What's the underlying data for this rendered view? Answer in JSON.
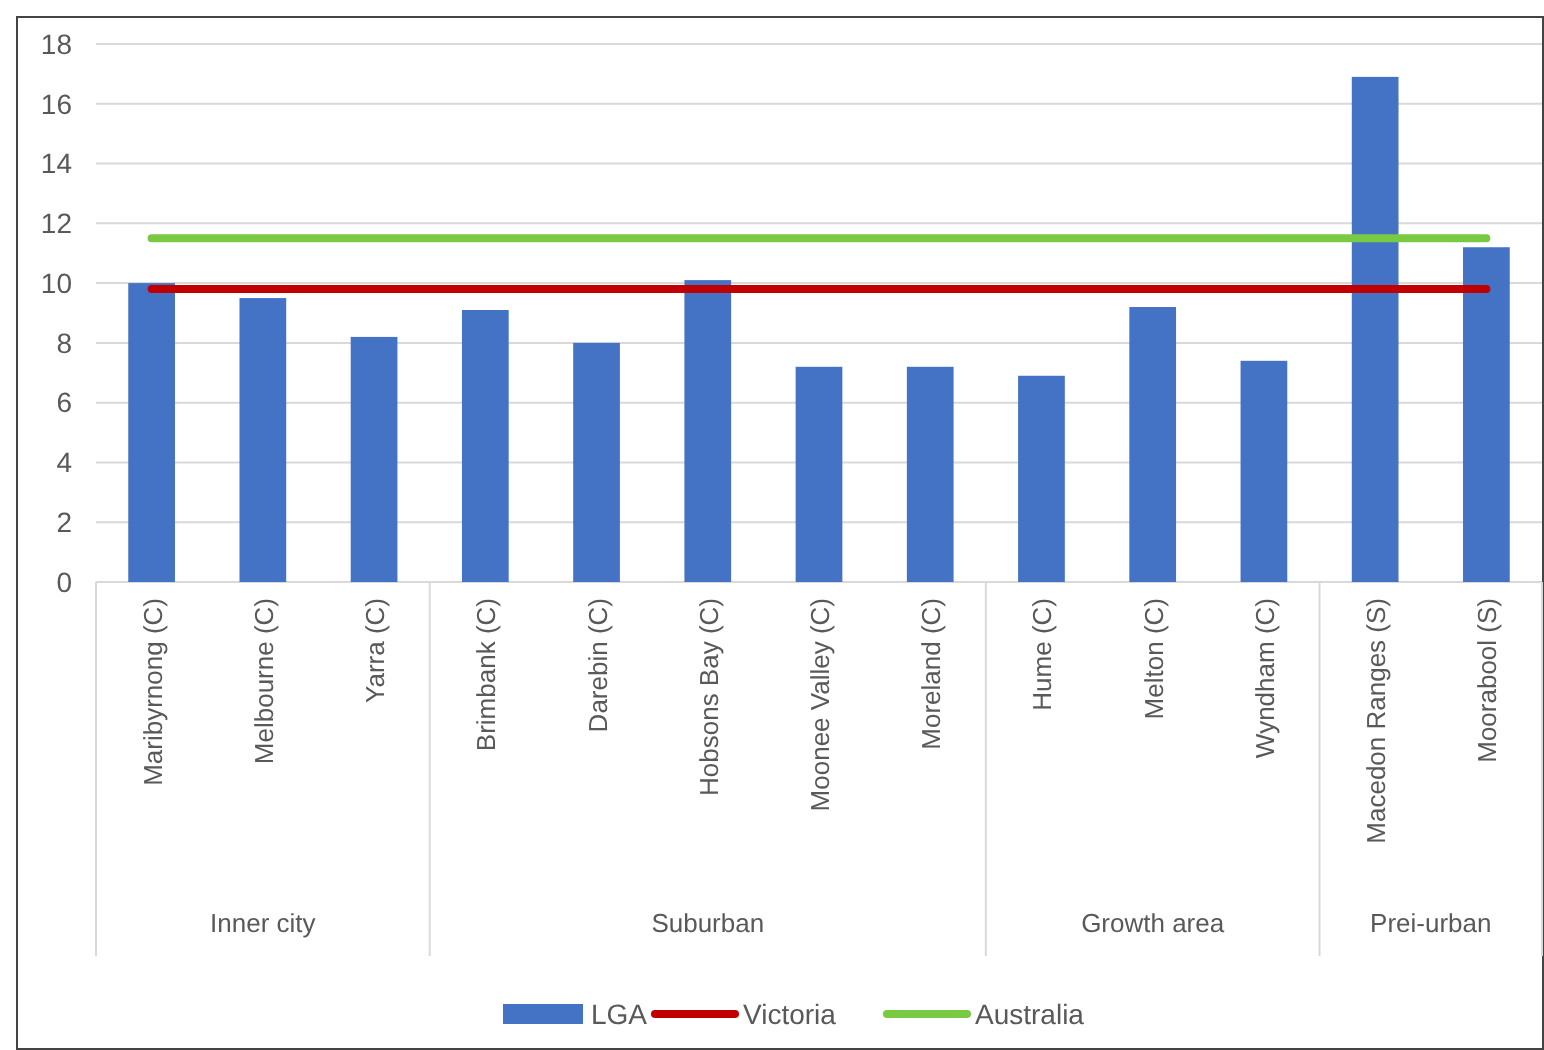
{
  "chart_data": {
    "type": "bar",
    "categories": [
      "Maribyrnong (C)",
      "Melbourne (C)",
      "Yarra (C)",
      "Brimbank (C)",
      "Darebin (C)",
      "Hobsons Bay (C)",
      "Moonee Valley (C)",
      "Moreland (C)",
      "Hume (C)",
      "Melton (C)",
      "Wyndham (C)",
      "Macedon Ranges (S)",
      "Moorabool (S)"
    ],
    "series": [
      {
        "name": "LGA",
        "color": "#4472c4",
        "values": [
          10.0,
          9.5,
          8.2,
          9.1,
          8.0,
          10.1,
          7.2,
          7.2,
          6.9,
          9.2,
          7.4,
          16.9,
          11.2
        ]
      },
      {
        "name": "Victoria",
        "type": "line",
        "color": "#c00000",
        "values": [
          9.8,
          9.8,
          9.8,
          9.8,
          9.8,
          9.8,
          9.8,
          9.8,
          9.8,
          9.8,
          9.8,
          9.8,
          9.8
        ]
      },
      {
        "name": "Australia",
        "type": "line",
        "color": "#7ac943",
        "values": [
          11.5,
          11.5,
          11.5,
          11.5,
          11.5,
          11.5,
          11.5,
          11.5,
          11.5,
          11.5,
          11.5,
          11.5,
          11.5
        ]
      }
    ],
    "annotations": [
      "Inner city",
      "Suburban",
      "Growth area",
      "Prei-urban"
    ],
    "ylim": [
      0,
      18
    ],
    "yticks": [
      0,
      2,
      4,
      6,
      8,
      10,
      12,
      14,
      16,
      18
    ],
    "grid": "y",
    "legend": "bottom"
  }
}
